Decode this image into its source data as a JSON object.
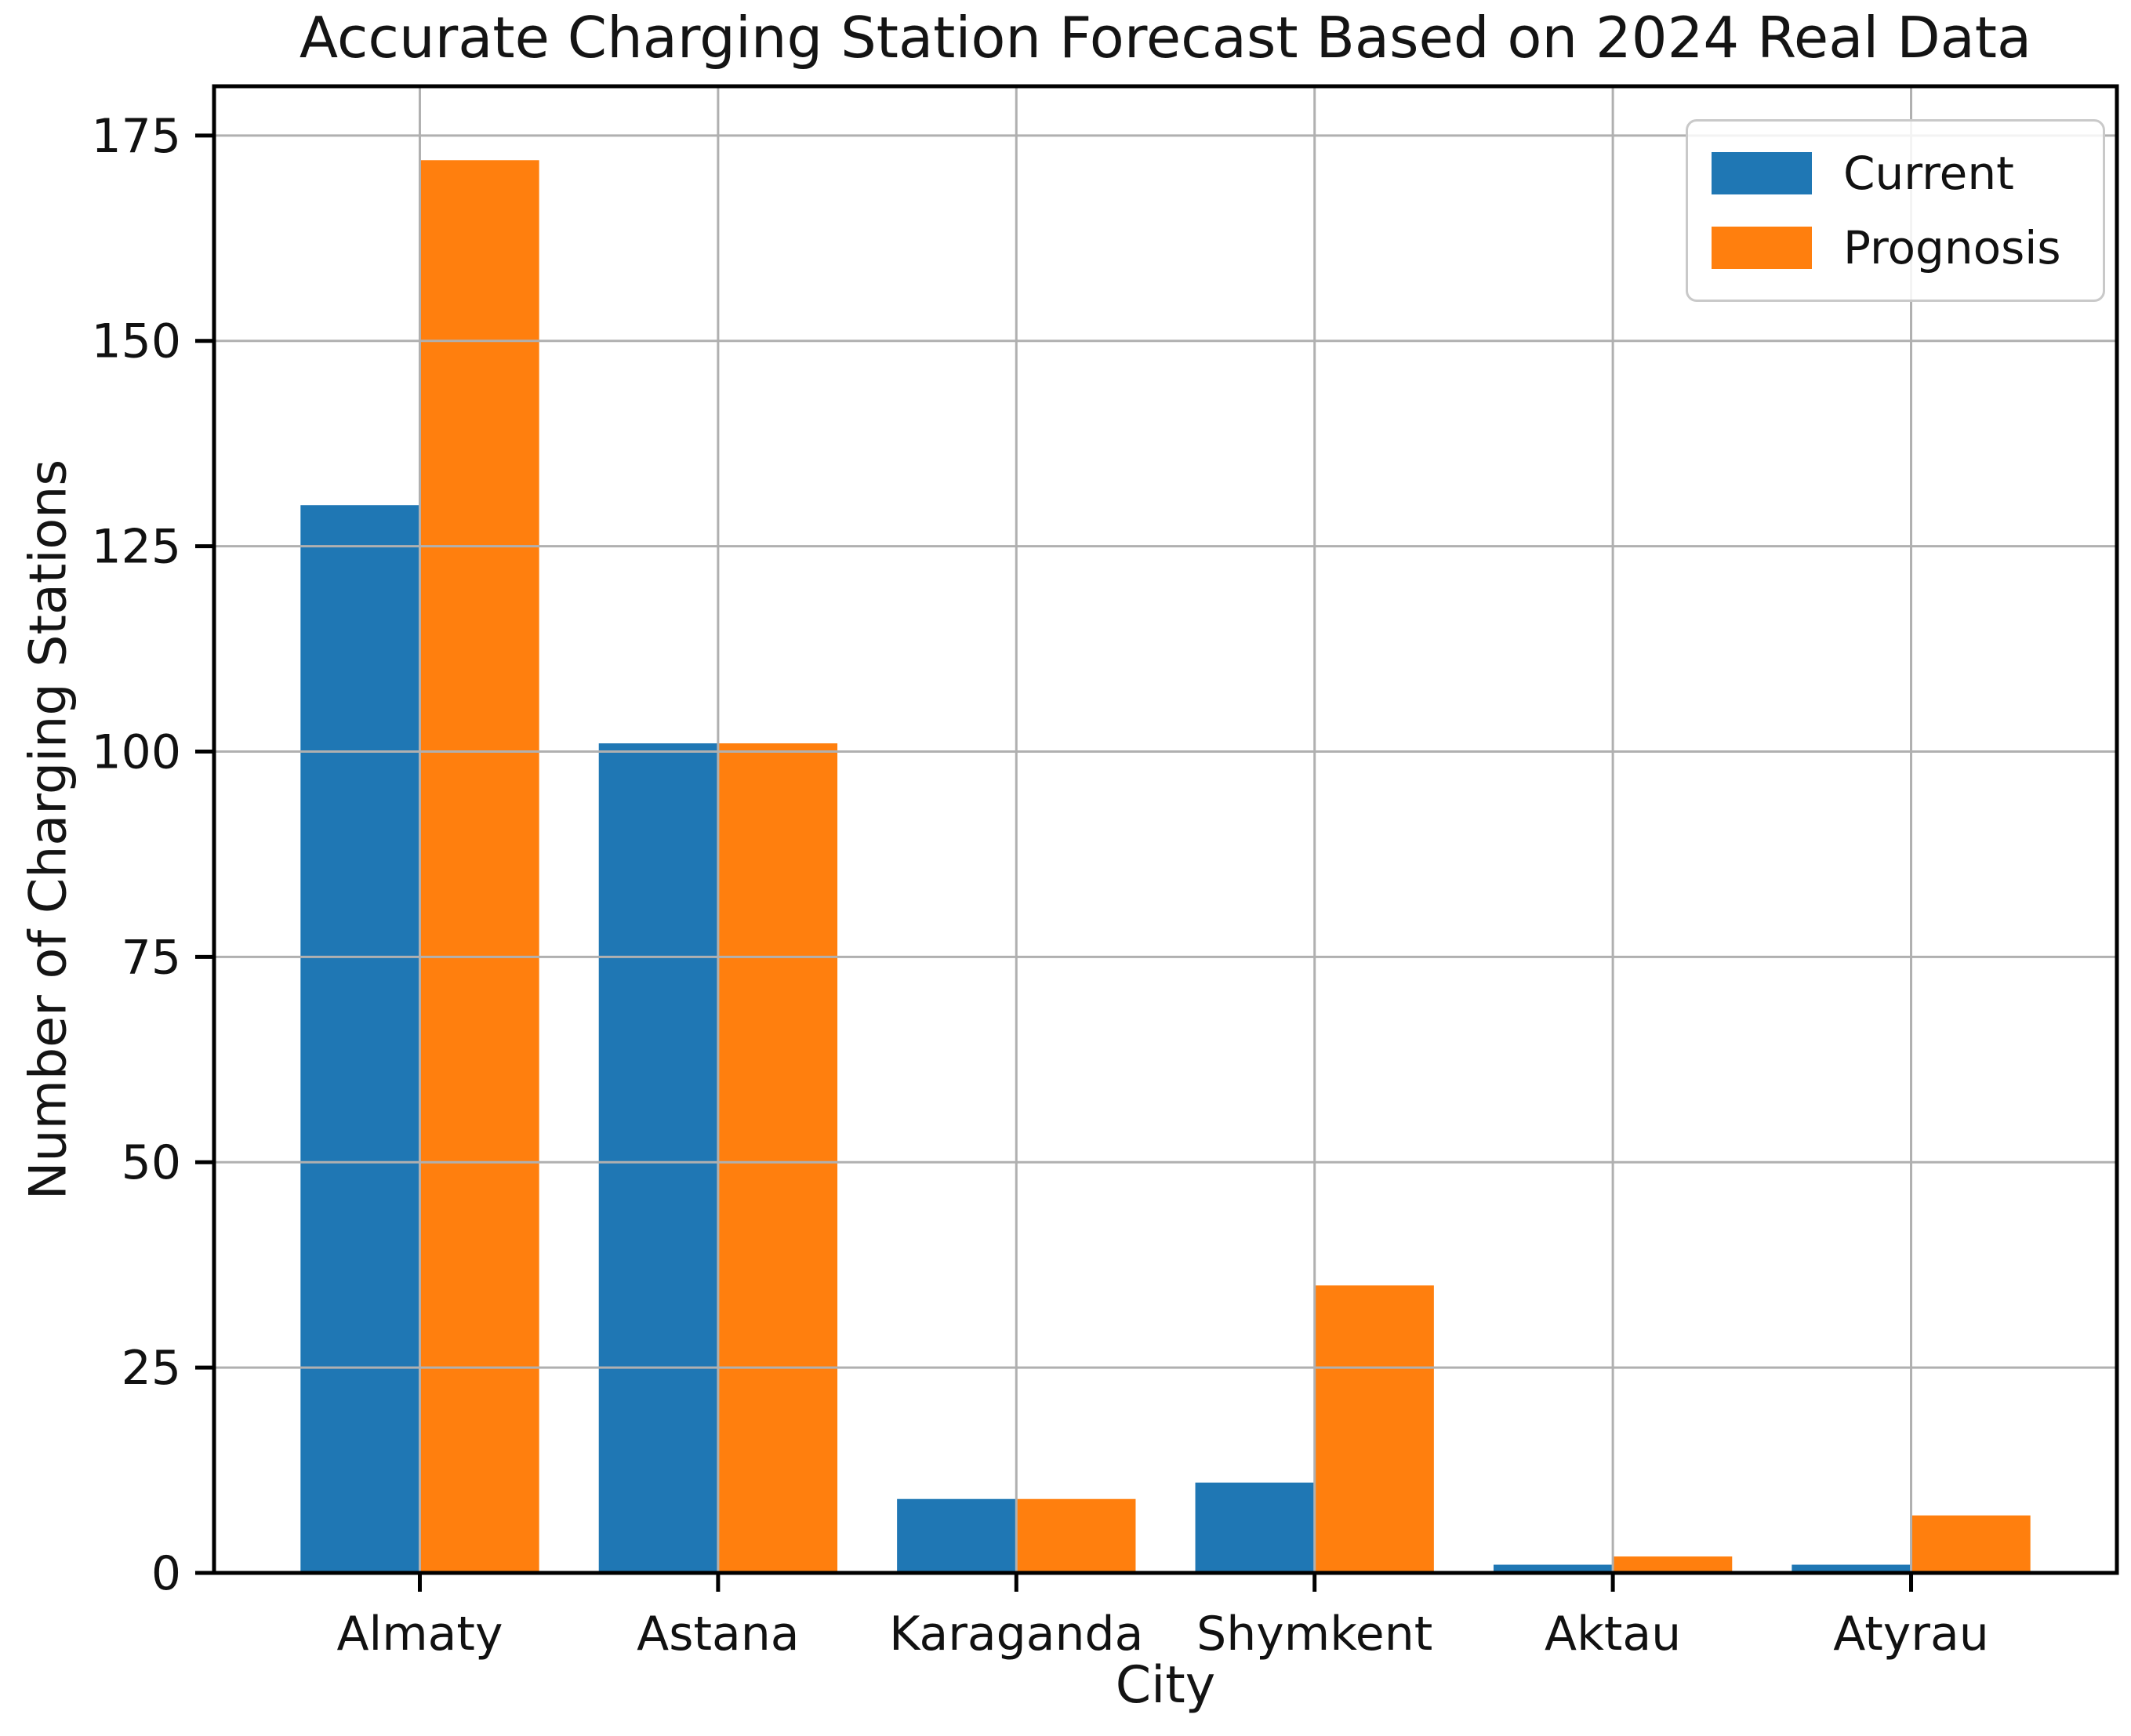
{
  "chart_data": {
    "type": "bar",
    "title": "Accurate Charging Station Forecast Based on 2024 Real Data",
    "xlabel": "City",
    "ylabel": "Number of Charging Stations",
    "categories": [
      "Almaty",
      "Astana",
      "Karaganda",
      "Shymkent",
      "Aktau",
      "Atyrau"
    ],
    "series": [
      {
        "name": "Current",
        "color": "#1f77b4",
        "values": [
          130,
          101,
          9,
          11,
          1,
          1
        ]
      },
      {
        "name": "Prognosis",
        "color": "#ff7f0e",
        "values": [
          172,
          101,
          9,
          35,
          2,
          7
        ]
      }
    ],
    "y_ticks": [
      0,
      25,
      50,
      75,
      100,
      125,
      150,
      175
    ],
    "ylim": [
      0,
      181
    ],
    "grid": true,
    "grid_color": "#b0b0b0",
    "spine_color": "#000000",
    "text_color": "#111111",
    "legend_position": "upper right"
  }
}
